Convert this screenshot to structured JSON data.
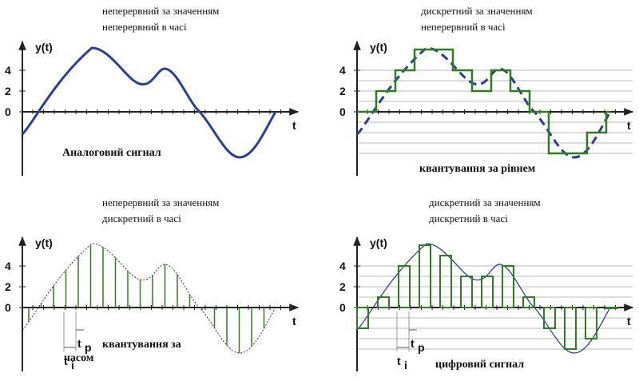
{
  "panels": [
    {
      "caption": [
        "неперервний за значенням",
        "неперервний в часі"
      ],
      "y_label": "y(t)",
      "x_label": "t",
      "ticks": [
        "4",
        "2",
        "0"
      ],
      "note": [
        "Аналоговий сигнал"
      ]
    },
    {
      "caption": [
        "дискретний за значенням",
        "неперервний в часі"
      ],
      "y_label": "y(t)",
      "x_label": "t",
      "ticks": [
        "4",
        "2",
        "0"
      ],
      "note": [
        "квантування за рівнем"
      ]
    },
    {
      "caption": [
        "неперервний за значенням",
        "дискретний в часі"
      ],
      "y_label": "y(t)",
      "x_label": "t",
      "ticks": [
        "4",
        "2",
        "0"
      ],
      "note": [
        "квантування за",
        "часом"
      ],
      "markers": [
        {
          "base": "t",
          "sub": "i"
        },
        {
          "base": "t",
          "sub": "p"
        }
      ]
    },
    {
      "caption": [
        "дискретний за значенням",
        "дискретний в часі"
      ],
      "y_label": "y(t)",
      "x_label": "t",
      "ticks": [
        "4",
        "2",
        "0"
      ],
      "note": [
        "цифровий сигнал"
      ],
      "markers": [
        {
          "base": "t",
          "sub": "i"
        },
        {
          "base": "t",
          "sub": "p"
        }
      ]
    }
  ]
}
